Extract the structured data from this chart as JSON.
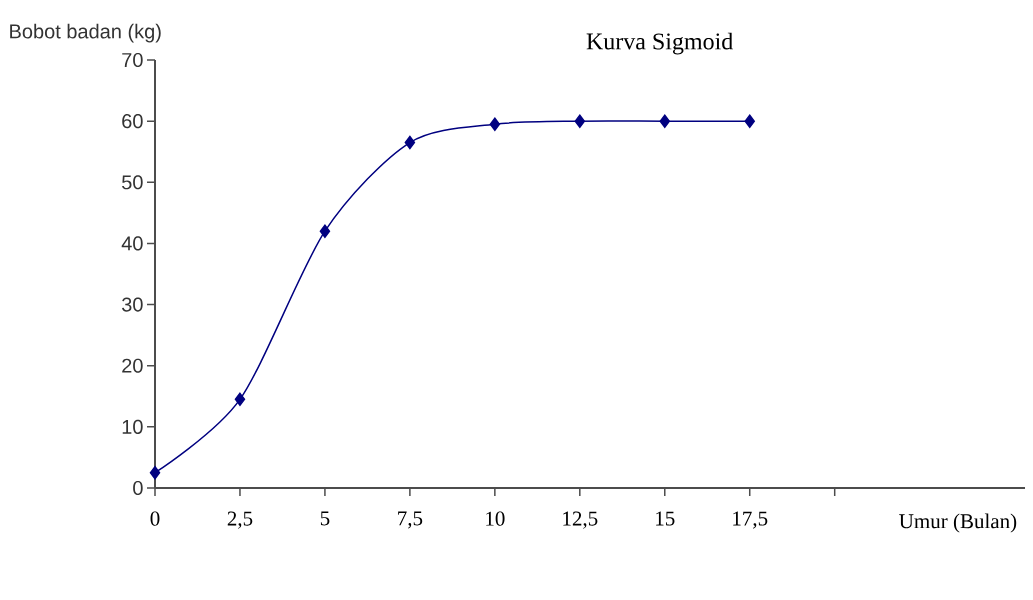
{
  "chart_data": {
    "type": "line",
    "title": "Kurva Sigmoid",
    "xlabel": "Umur (Bulan)",
    "ylabel": "Bobot badan (kg)",
    "x": [
      0,
      2.5,
      5,
      7.5,
      10,
      12.5,
      15,
      17.5
    ],
    "series": [
      {
        "color": "#000080",
        "values": [
          2.5,
          14.5,
          42,
          56.5,
          59.5,
          60,
          60,
          60
        ]
      }
    ],
    "xlim": [
      0,
      25.6
    ],
    "ylim": [
      0,
      70
    ],
    "xticks": [
      0,
      {
        "value": 2.5,
        "label": "2,5"
      },
      5,
      {
        "value": 7.5,
        "label": "7,5"
      },
      10,
      {
        "value": 12.5,
        "label": "12,5"
      },
      15,
      {
        "value": 17.5,
        "label": "17,5"
      },
      {
        "value": 20,
        "label": null
      }
    ],
    "yticks": [
      0,
      10,
      20,
      30,
      40,
      50,
      60,
      70
    ],
    "marker": "diamond",
    "line_style": "solid"
  }
}
